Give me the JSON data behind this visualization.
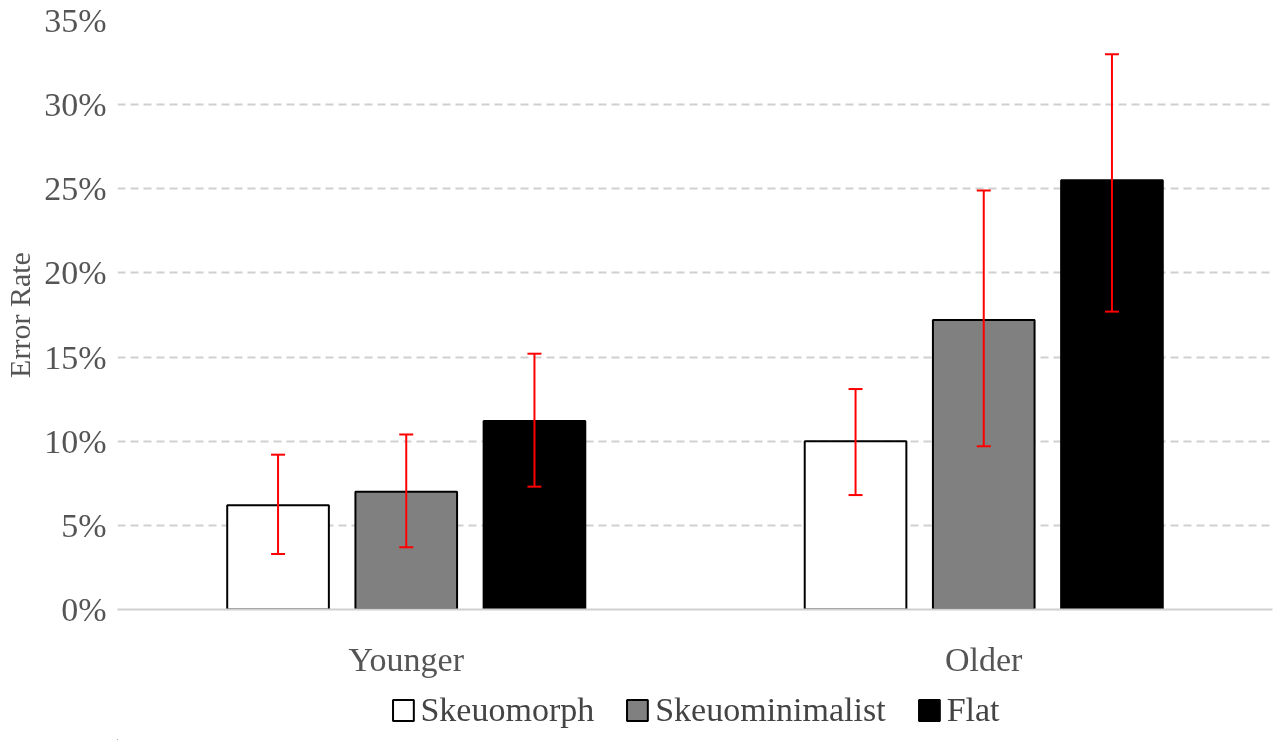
{
  "chart_data": {
    "type": "bar",
    "ylabel": "Error Rate",
    "categories": [
      "Younger",
      "Older"
    ],
    "series": [
      {
        "name": "Skeuomorph",
        "color": "#ffffff",
        "values": [
          6.2,
          10.0
        ],
        "errors": [
          [
            3.3,
            9.2
          ],
          [
            6.8,
            13.1
          ]
        ]
      },
      {
        "name": "Skeuominimalist",
        "color": "#808080",
        "values": [
          7.0,
          17.2
        ],
        "errors": [
          [
            3.7,
            10.4
          ],
          [
            9.7,
            24.9
          ]
        ]
      },
      {
        "name": "Flat",
        "color": "#000000",
        "values": [
          11.2,
          25.5
        ],
        "errors": [
          [
            7.3,
            15.2
          ],
          [
            17.7,
            33.0
          ]
        ]
      }
    ],
    "ylim": [
      0,
      35
    ],
    "yticks": [
      {
        "value": 0,
        "label": "0%"
      },
      {
        "value": 5,
        "label": "5%"
      },
      {
        "value": 10,
        "label": "10%"
      },
      {
        "value": 15,
        "label": "15%"
      },
      {
        "value": 20,
        "label": "20%"
      },
      {
        "value": 25,
        "label": "25%"
      },
      {
        "value": 30,
        "label": "30%"
      },
      {
        "value": 35,
        "label": "35%"
      }
    ],
    "grid": "y",
    "legend": "bottom"
  }
}
